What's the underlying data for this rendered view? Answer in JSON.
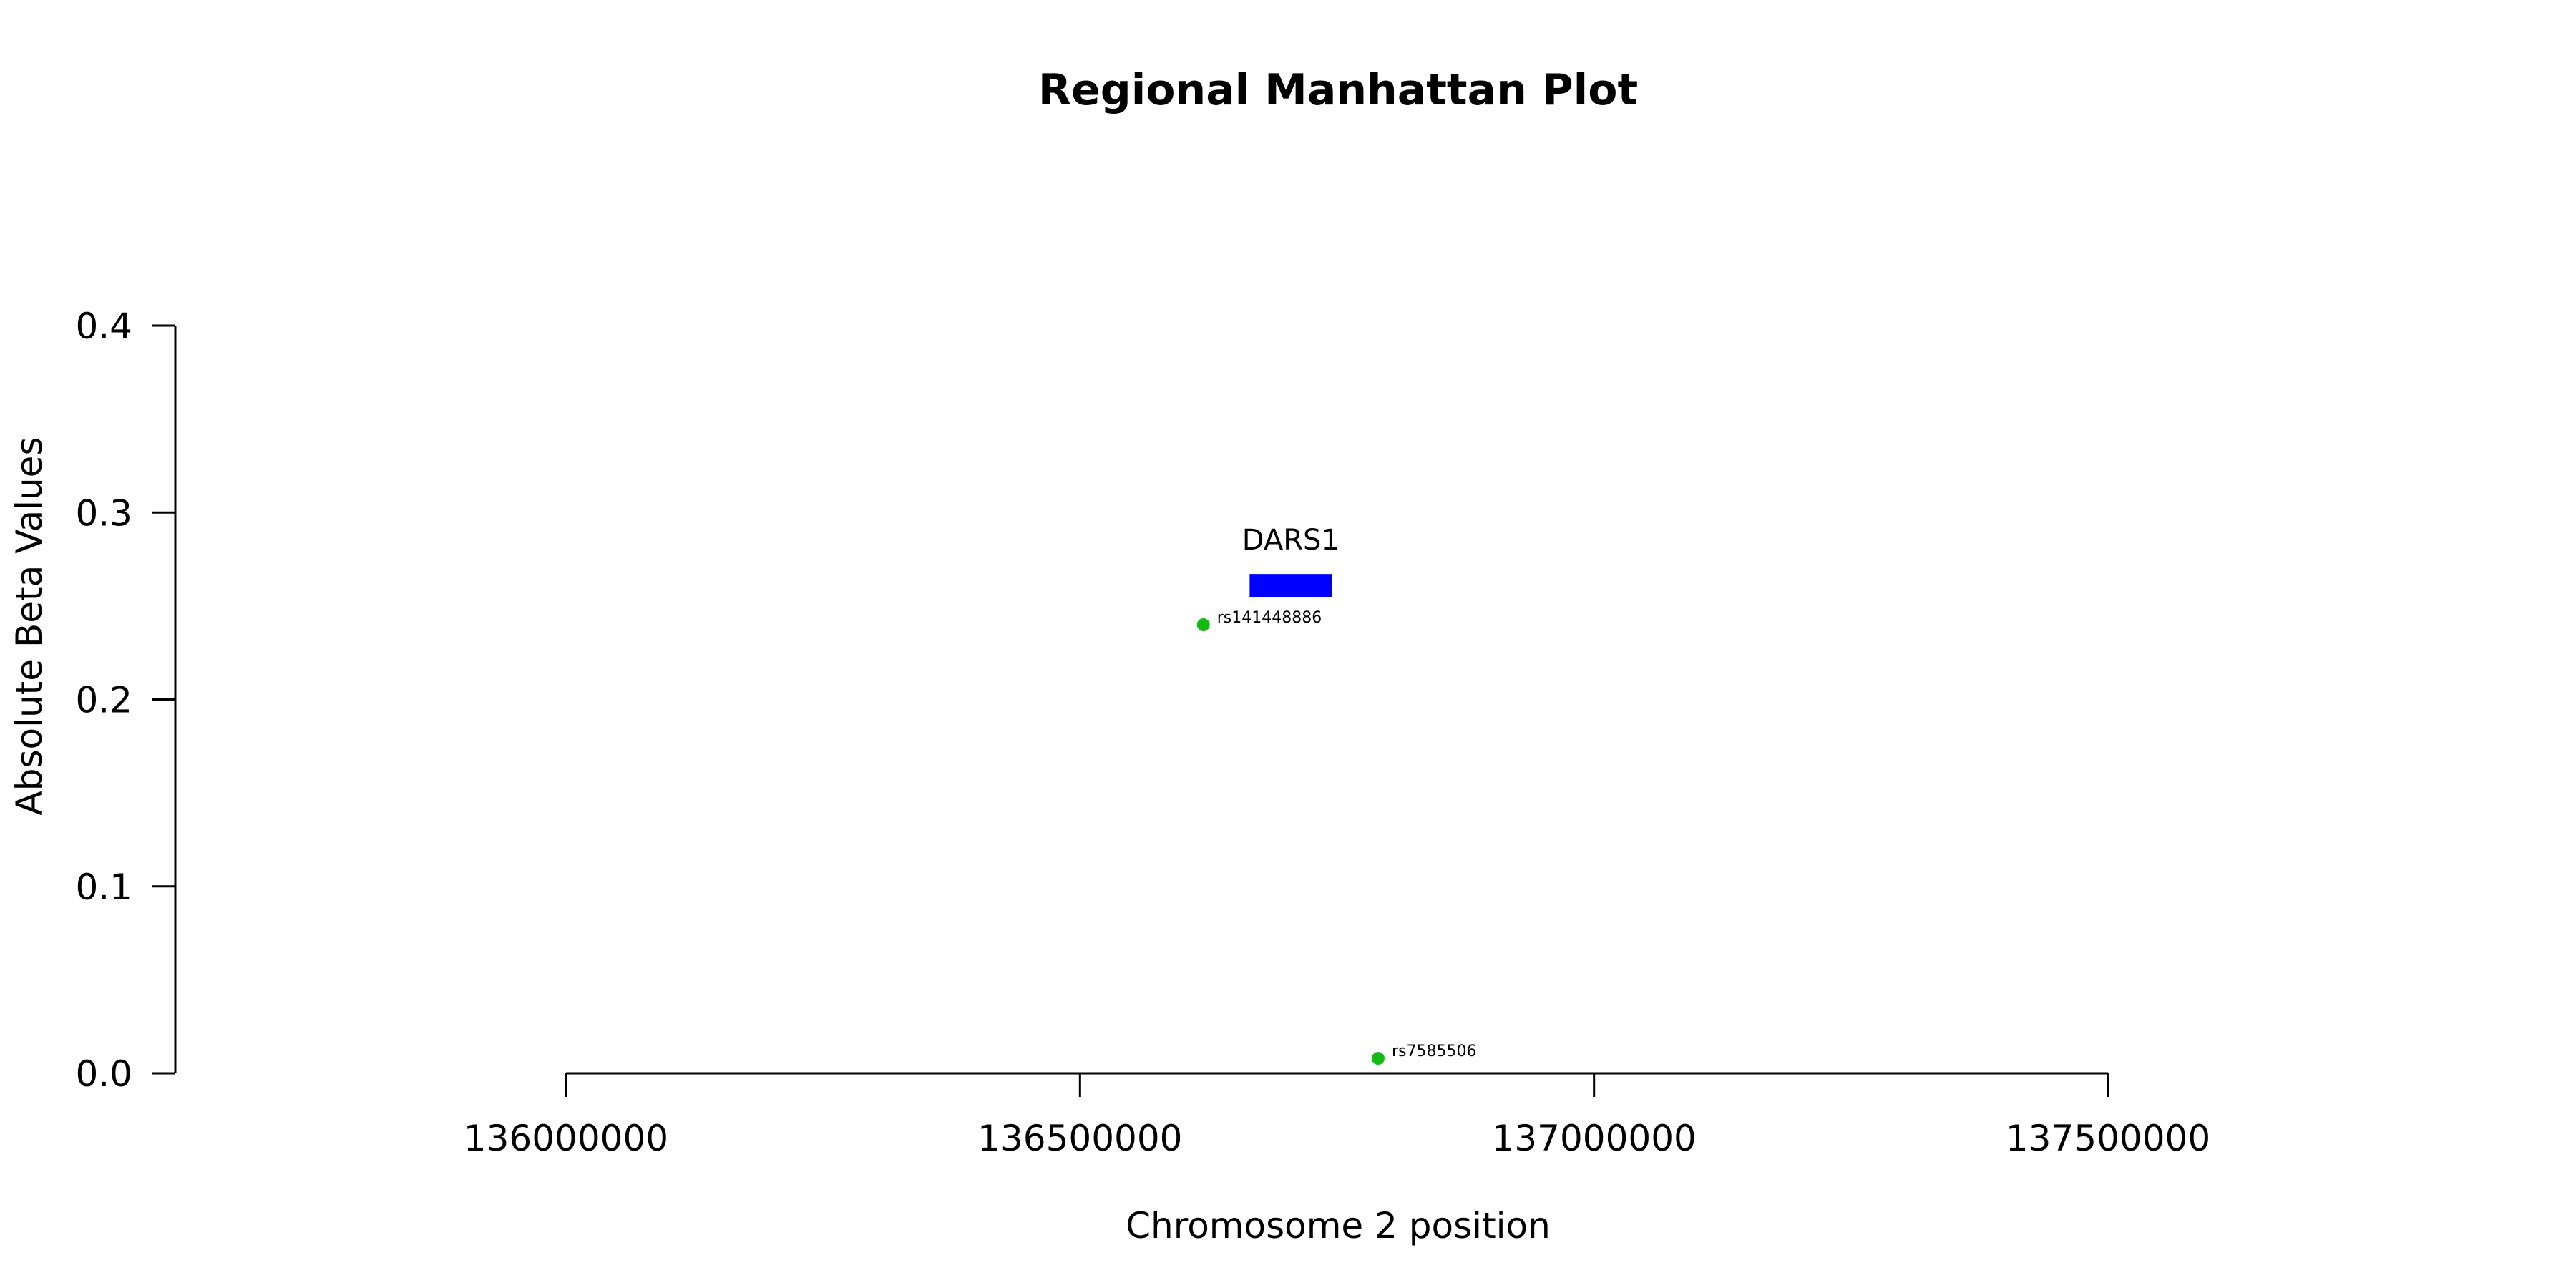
{
  "chart_data": {
    "type": "scatter",
    "title": "Regional Manhattan Plot",
    "xlabel": "Chromosome 2 position",
    "ylabel": "Absolute Beta Values",
    "xlim": [
      135620000,
      137880000
    ],
    "ylim": [
      0,
      0.4
    ],
    "x_ticks": [
      136000000,
      136500000,
      137000000,
      137500000
    ],
    "x_tick_labels": [
      "136000000",
      "136500000",
      "137000000",
      "137500000"
    ],
    "y_ticks": [
      0,
      0.1,
      0.2,
      0.3,
      0.4
    ],
    "y_tick_labels": [
      "0.0",
      "0.1",
      "0.2",
      "0.3",
      "0.4"
    ],
    "grid": false,
    "legend": "none",
    "point_color": "#11bb11",
    "gene_color": "#0000ff",
    "series": [
      {
        "points": [
          {
            "x": 136620000,
            "y": 0.24,
            "label": "rs141448886"
          },
          {
            "x": 136790000,
            "y": 0.008,
            "label": "rs7585506"
          }
        ]
      }
    ],
    "genes": [
      {
        "name": "DARS1",
        "start": 136665000,
        "end": 136745000,
        "y": 0.261
      }
    ]
  }
}
